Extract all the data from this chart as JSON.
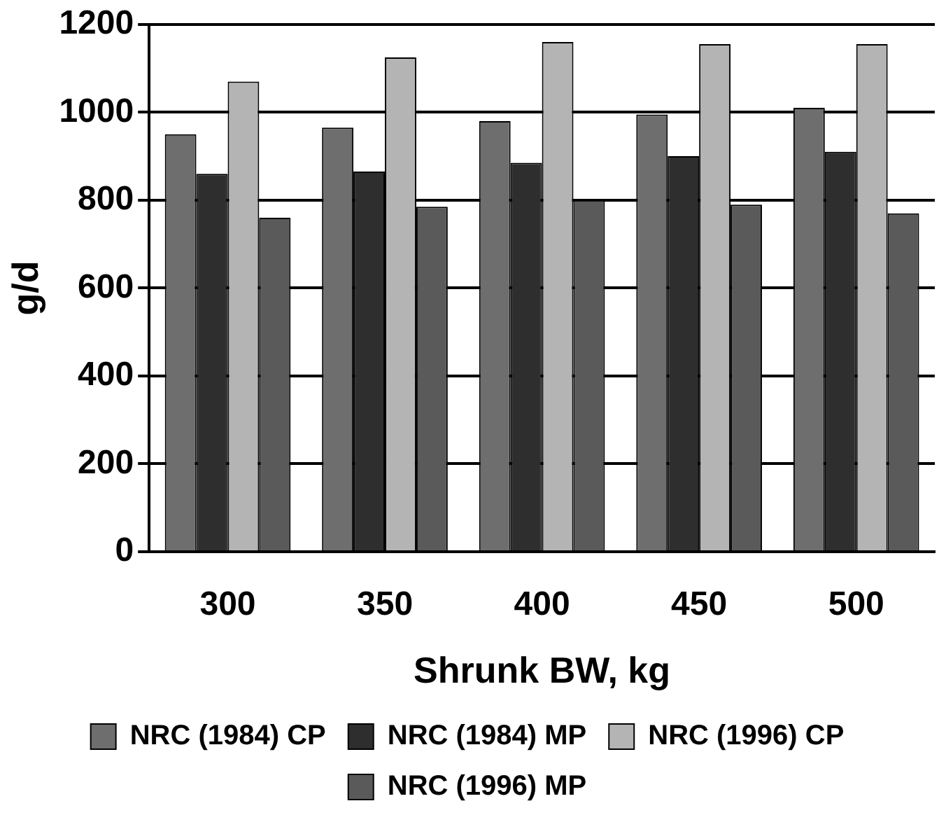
{
  "chart_data": {
    "type": "bar",
    "xlabel": "Shrunk BW, kg",
    "ylabel": "g/d",
    "categories": [
      "300",
      "350",
      "400",
      "450",
      "500"
    ],
    "series": [
      {
        "name": "NRC (1984) CP",
        "color": "#6e6e6e",
        "values": [
          950,
          965,
          980,
          995,
          1010
        ]
      },
      {
        "name": "NRC (1984) MP",
        "color": "#2e2e2e",
        "values": [
          860,
          865,
          885,
          900,
          910
        ]
      },
      {
        "name": "NRC (1996) CP",
        "color": "#b4b4b4",
        "values": [
          1070,
          1125,
          1160,
          1155,
          1155
        ]
      },
      {
        "name": "NRC (1996) MP",
        "color": "#5a5a5a",
        "values": [
          760,
          785,
          800,
          790,
          770
        ]
      }
    ],
    "ylim": [
      0,
      1200
    ],
    "yticks": [
      0,
      200,
      400,
      600,
      800,
      1000,
      1200
    ],
    "grid": "y",
    "legend": "bottom"
  }
}
